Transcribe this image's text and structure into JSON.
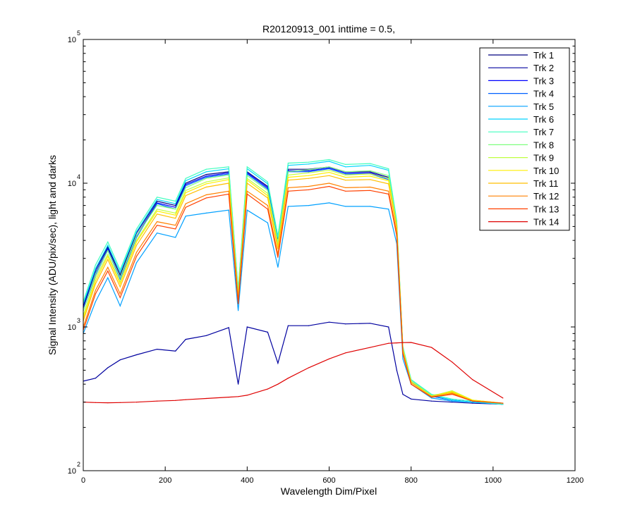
{
  "chart_data": {
    "type": "line",
    "title": "R20120913_001 inttime = 0.5,",
    "xlabel": "Wavelength Dim/Pixel",
    "ylabel": "Signal Intensity (ADU/pix/sec), light and darks",
    "xlim": [
      0,
      1200
    ],
    "ylim": [
      100,
      100000
    ],
    "yscale": "log",
    "grid": false,
    "legend_position": "top-right",
    "x_ticks": [
      0,
      200,
      400,
      600,
      800,
      1000,
      1200
    ],
    "x_tick_labels": [
      "0",
      "200",
      "400",
      "600",
      "800",
      "1000",
      "1200"
    ],
    "y_ticks": [
      {
        "value": 100,
        "base": "10",
        "exp": "2"
      },
      {
        "value": 1000,
        "base": "10",
        "exp": "3"
      },
      {
        "value": 10000,
        "base": "10",
        "exp": "4"
      },
      {
        "value": 100000,
        "base": "10",
        "exp": "5"
      }
    ],
    "x_samples": [
      0,
      30,
      60,
      90,
      130,
      180,
      225,
      250,
      300,
      355,
      378,
      400,
      450,
      475,
      500,
      550,
      600,
      640,
      700,
      745,
      765,
      780,
      800,
      850,
      900,
      950,
      1024
    ],
    "series": [
      {
        "name": "Trk 1",
        "color": "#00007f",
        "values": [
          1400,
          2500,
          3600,
          2300,
          4500,
          7500,
          7000,
          10000,
          11500,
          12000,
          1700,
          12000,
          9500,
          4000,
          12500,
          12500,
          13000,
          12000,
          12000,
          11000,
          5000,
          700,
          420,
          330,
          310,
          300,
          290
        ]
      },
      {
        "name": "Trk 2",
        "color": "#00009f",
        "values": [
          420,
          440,
          520,
          590,
          640,
          700,
          680,
          820,
          870,
          990,
          400,
          1000,
          920,
          560,
          1020,
          1020,
          1080,
          1050,
          1060,
          1000,
          500,
          340,
          315,
          305,
          300,
          295,
          290
        ]
      },
      {
        "name": "Trk 3",
        "color": "#0000ff",
        "values": [
          1350,
          2400,
          3500,
          2200,
          4300,
          7300,
          6800,
          9800,
          11200,
          11800,
          1700,
          11800,
          9300,
          3900,
          12200,
          12200,
          12800,
          11800,
          11800,
          10800,
          5000,
          700,
          420,
          330,
          310,
          300,
          290
        ]
      },
      {
        "name": "Trk 4",
        "color": "#0060ff",
        "values": [
          1300,
          2300,
          3400,
          2150,
          4200,
          7200,
          6600,
          9600,
          11000,
          11600,
          1650,
          11600,
          9100,
          3800,
          12000,
          12000,
          12600,
          11600,
          11600,
          10600,
          4900,
          690,
          410,
          330,
          310,
          300,
          290
        ]
      },
      {
        "name": "Trk 5",
        "color": "#00a0ff",
        "values": [
          900,
          1500,
          2200,
          1400,
          2800,
          4500,
          4200,
          5900,
          6200,
          6500,
          1300,
          6500,
          5300,
          2600,
          6900,
          7000,
          7300,
          6900,
          6900,
          6600,
          3800,
          600,
          400,
          320,
          305,
          300,
          290
        ]
      },
      {
        "name": "Trk 6",
        "color": "#00d4ff",
        "values": [
          1450,
          2550,
          3700,
          2400,
          4600,
          7700,
          7200,
          10400,
          12000,
          12600,
          1800,
          12600,
          9900,
          4200,
          13300,
          13600,
          14200,
          13000,
          13300,
          12300,
          5400,
          720,
          430,
          335,
          310,
          300,
          290
        ]
      },
      {
        "name": "Trk 7",
        "color": "#40ffbf",
        "values": [
          1500,
          2700,
          3900,
          2500,
          4800,
          8000,
          7500,
          10800,
          12500,
          13000,
          1800,
          13000,
          10200,
          4300,
          13800,
          14000,
          14600,
          13500,
          13700,
          12600,
          5500,
          730,
          430,
          340,
          315,
          305,
          290
        ]
      },
      {
        "name": "Trk 8",
        "color": "#80ff80",
        "values": [
          1300,
          2350,
          3400,
          2200,
          4300,
          7000,
          6600,
          9300,
          10800,
          11400,
          1700,
          11300,
          8900,
          3900,
          12000,
          12400,
          13000,
          12000,
          12200,
          11300,
          5200,
          710,
          420,
          335,
          350,
          310,
          295
        ]
      },
      {
        "name": "Trk 9",
        "color": "#c0ff40",
        "values": [
          1200,
          2200,
          3200,
          2050,
          4000,
          6600,
          6200,
          8900,
          10200,
          10900,
          1650,
          10800,
          8500,
          3700,
          11400,
          11800,
          12300,
          11400,
          11600,
          10800,
          5100,
          700,
          420,
          330,
          360,
          310,
          295
        ]
      },
      {
        "name": "Trk 10",
        "color": "#ffef00",
        "values": [
          1150,
          2100,
          3100,
          2000,
          3900,
          6400,
          6000,
          8600,
          9900,
          10600,
          1600,
          10500,
          8200,
          3600,
          11000,
          11300,
          11900,
          11000,
          11200,
          10400,
          5000,
          690,
          410,
          330,
          355,
          310,
          295
        ]
      },
      {
        "name": "Trk 11",
        "color": "#ffbf00",
        "values": [
          1100,
          2000,
          2950,
          1900,
          3700,
          6100,
          5700,
          8200,
          9400,
          10000,
          1600,
          10000,
          7900,
          3500,
          10500,
          10800,
          11300,
          10500,
          10600,
          9900,
          4900,
          680,
          410,
          330,
          350,
          305,
          295
        ]
      },
      {
        "name": "Trk 12",
        "color": "#ff8000",
        "values": [
          1000,
          1800,
          2600,
          1700,
          3300,
          5400,
          5100,
          7200,
          8300,
          8800,
          1500,
          8800,
          7000,
          3200,
          9300,
          9500,
          10000,
          9300,
          9400,
          8800,
          4500,
          660,
          400,
          325,
          345,
          305,
          295
        ]
      },
      {
        "name": "Trk 13",
        "color": "#ff4000",
        "values": [
          950,
          1700,
          2450,
          1600,
          3100,
          5100,
          4800,
          6800,
          7900,
          8400,
          1450,
          8400,
          6600,
          3050,
          8800,
          9000,
          9500,
          8800,
          8900,
          8400,
          4300,
          650,
          400,
          325,
          340,
          305,
          295
        ]
      },
      {
        "name": "Trk 14",
        "color": "#df0000",
        "values": [
          300,
          298,
          297,
          298,
          300,
          305,
          308,
          312,
          318,
          325,
          328,
          335,
          370,
          400,
          440,
          520,
          600,
          660,
          720,
          770,
          775,
          778,
          780,
          720,
          570,
          430,
          320
        ]
      }
    ],
    "dark_traces_description_free": true
  }
}
